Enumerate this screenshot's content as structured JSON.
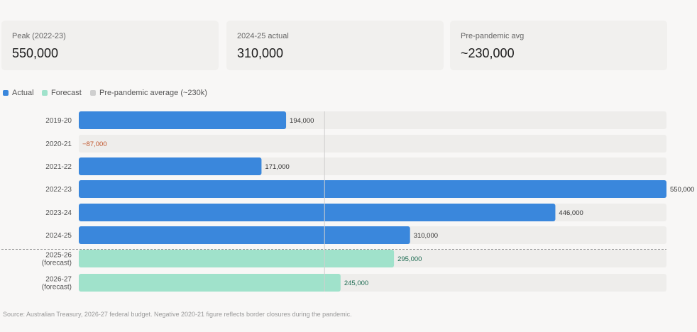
{
  "cards": [
    {
      "label": "Peak (2022-23)",
      "value": "550,000"
    },
    {
      "label": "2024-25 actual",
      "value": "310,000"
    },
    {
      "label": "Pre-pandemic avg",
      "value": "~230,000"
    }
  ],
  "legend": [
    {
      "label": "Actual",
      "color": "#3a87dc"
    },
    {
      "label": "Forecast",
      "color": "#a0e2cb"
    },
    {
      "label": "Pre-pandemic average (~230k)",
      "color": "#cfcfcf"
    }
  ],
  "colors": {
    "actual": "#3a87dc",
    "forecast": "#a0e2cb",
    "track": "#eeedeb",
    "negative_label": "#c0552b",
    "forecast_label": "#1d6b52",
    "reference_line": "#cfcfcf"
  },
  "chart_data": {
    "type": "bar",
    "orientation": "horizontal",
    "xlim": [
      0,
      550000
    ],
    "reference_value": 230000,
    "categories": [
      {
        "label": [
          "2019-20"
        ],
        "value": 194000,
        "value_label": "194,000",
        "kind": "actual"
      },
      {
        "label": [
          "2020-21"
        ],
        "value": -87000,
        "value_label": "−87,000",
        "kind": "actual"
      },
      {
        "label": [
          "2021-22"
        ],
        "value": 171000,
        "value_label": "171,000",
        "kind": "actual"
      },
      {
        "label": [
          "2022-23"
        ],
        "value": 550000,
        "value_label": "550,000",
        "kind": "actual"
      },
      {
        "label": [
          "2023-24"
        ],
        "value": 446000,
        "value_label": "446,000",
        "kind": "actual"
      },
      {
        "label": [
          "2024-25"
        ],
        "value": 310000,
        "value_label": "310,000",
        "kind": "actual"
      },
      {
        "label": [
          "2025-26",
          "(forecast)"
        ],
        "value": 295000,
        "value_label": "295,000",
        "kind": "forecast"
      },
      {
        "label": [
          "2026-27",
          "(forecast)"
        ],
        "value": 245000,
        "value_label": "245,000",
        "kind": "forecast"
      }
    ]
  },
  "source": "Source: Australian Treasury, 2026-27 federal budget. Negative 2020-21 figure reflects border closures during the pandemic."
}
